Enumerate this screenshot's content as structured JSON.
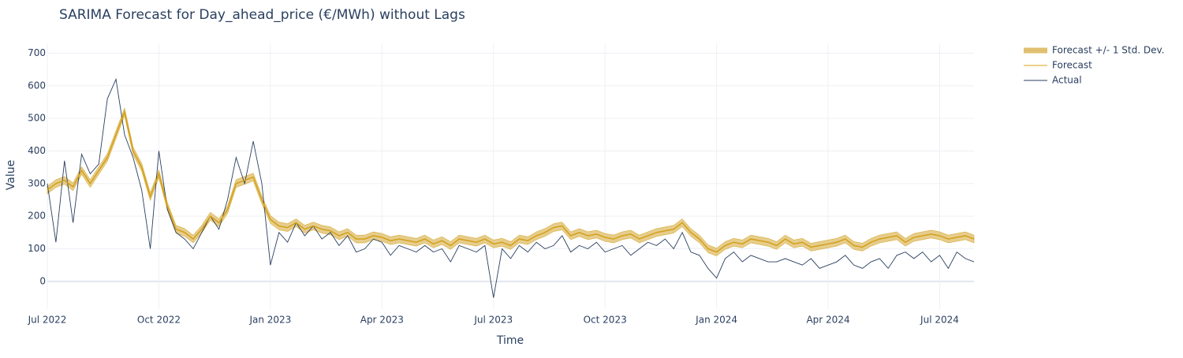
{
  "chart_data": {
    "type": "line",
    "title": "SARIMA Forecast for Day_ahead_price (€/MWh) without Lags",
    "x_label": "Time",
    "y_label": "Value",
    "categories": [
      "Jul 2022",
      null,
      null,
      null,
      null,
      null,
      null,
      null,
      null,
      null,
      null,
      null,
      null,
      "Oct 2022",
      null,
      null,
      null,
      null,
      null,
      null,
      null,
      null,
      null,
      null,
      null,
      null,
      "Jan 2023",
      null,
      null,
      null,
      null,
      null,
      null,
      null,
      null,
      null,
      null,
      null,
      null,
      "Apr 2023",
      null,
      null,
      null,
      null,
      null,
      null,
      null,
      null,
      null,
      null,
      null,
      null,
      "Jul 2023",
      null,
      null,
      null,
      null,
      null,
      null,
      null,
      null,
      null,
      null,
      null,
      null,
      "Oct 2023",
      null,
      null,
      null,
      null,
      null,
      null,
      null,
      null,
      null,
      null,
      null,
      null,
      "Jan 2024",
      null,
      null,
      null,
      null,
      null,
      null,
      null,
      null,
      null,
      null,
      null,
      null,
      "Apr 2024",
      null,
      null,
      null,
      null,
      null,
      null,
      null,
      null,
      null,
      null,
      null,
      null,
      "Jul 2024",
      null,
      null,
      null,
      null
    ],
    "ylim": [
      -85,
      730
    ],
    "yticks": [
      0,
      100,
      200,
      300,
      400,
      500,
      600,
      700
    ],
    "grid": true,
    "legend": "outside-top-right",
    "series": [
      {
        "name": "Forecast +/- 1 Std. Dev.",
        "color": "#e0c070",
        "std": 12
      },
      {
        "name": "Forecast",
        "color": "#d4a017",
        "values": [
          280,
          300,
          310,
          290,
          340,
          300,
          340,
          380,
          450,
          520,
          400,
          350,
          260,
          330,
          230,
          160,
          150,
          130,
          160,
          200,
          180,
          220,
          300,
          310,
          320,
          250,
          190,
          170,
          165,
          180,
          160,
          170,
          160,
          155,
          140,
          150,
          130,
          130,
          140,
          135,
          125,
          130,
          125,
          120,
          130,
          115,
          125,
          110,
          130,
          125,
          120,
          130,
          115,
          120,
          110,
          130,
          125,
          140,
          150,
          165,
          170,
          140,
          150,
          140,
          145,
          135,
          130,
          140,
          145,
          130,
          140,
          150,
          155,
          160,
          180,
          150,
          130,
          100,
          90,
          110,
          120,
          115,
          130,
          125,
          120,
          110,
          130,
          115,
          120,
          105,
          110,
          115,
          120,
          130,
          110,
          105,
          120,
          130,
          135,
          140,
          120,
          135,
          140,
          145,
          140,
          130,
          135,
          140,
          130
        ]
      },
      {
        "name": "Actual",
        "color": "#2a3f5f",
        "values": [
          300,
          120,
          370,
          180,
          390,
          330,
          360,
          560,
          620,
          450,
          380,
          280,
          100,
          400,
          220,
          150,
          130,
          100,
          150,
          200,
          160,
          250,
          380,
          300,
          430,
          300,
          50,
          150,
          120,
          180,
          140,
          170,
          130,
          150,
          110,
          140,
          90,
          100,
          130,
          120,
          80,
          110,
          100,
          90,
          110,
          90,
          100,
          60,
          110,
          100,
          90,
          110,
          -50,
          100,
          70,
          110,
          90,
          120,
          100,
          110,
          140,
          90,
          110,
          100,
          120,
          90,
          100,
          110,
          80,
          100,
          120,
          110,
          130,
          100,
          150,
          90,
          80,
          40,
          10,
          70,
          90,
          60,
          80,
          70,
          60,
          60,
          70,
          60,
          50,
          70,
          40,
          50,
          60,
          80,
          50,
          40,
          60,
          70,
          40,
          80,
          90,
          70,
          90,
          60,
          80,
          40,
          90,
          70,
          60
        ]
      }
    ]
  }
}
